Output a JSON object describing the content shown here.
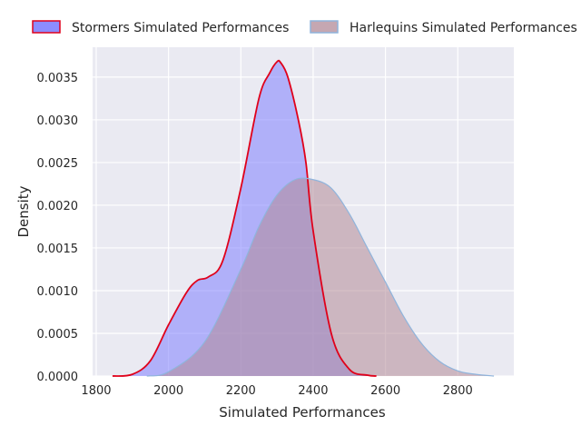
{
  "chart_data": {
    "type": "area",
    "xlabel": "Simulated Performances",
    "ylabel": "Density",
    "xlim": [
      1790,
      2955
    ],
    "ylim": [
      0,
      0.00385
    ],
    "x_ticks": [
      "1800",
      "2000",
      "2200",
      "2400",
      "2600",
      "2800"
    ],
    "y_ticks": [
      "0.0000",
      "0.0005",
      "0.0010",
      "0.0015",
      "0.0020",
      "0.0025",
      "0.0030",
      "0.0035"
    ],
    "grid": true,
    "legend_placement": "top-center",
    "series": [
      {
        "name": "Stormers Simulated Performances",
        "fill_color": "#8080ff",
        "fill_opacity": 0.55,
        "line_color": "#e0001a",
        "points": [
          [
            1845,
            0.0
          ],
          [
            1900,
            2e-05
          ],
          [
            1950,
            0.00018
          ],
          [
            2000,
            0.0006
          ],
          [
            2050,
            0.00098
          ],
          [
            2080,
            0.00112
          ],
          [
            2110,
            0.00116
          ],
          [
            2150,
            0.00135
          ],
          [
            2200,
            0.0022
          ],
          [
            2250,
            0.00325
          ],
          [
            2280,
            0.00355
          ],
          [
            2300,
            0.00368
          ],
          [
            2310,
            0.00367
          ],
          [
            2330,
            0.0035
          ],
          [
            2360,
            0.00298
          ],
          [
            2380,
            0.0025
          ],
          [
            2400,
            0.0017
          ],
          [
            2450,
            0.0005
          ],
          [
            2500,
            8e-05
          ],
          [
            2550,
            1e-05
          ],
          [
            2575,
            0.0
          ]
        ]
      },
      {
        "name": "Harlequins Simulated Performances",
        "fill_color": "#b28a98",
        "fill_opacity": 0.55,
        "line_color": "#8fb4dc",
        "points": [
          [
            1940,
            0.0
          ],
          [
            2000,
            5e-05
          ],
          [
            2100,
            0.0004
          ],
          [
            2200,
            0.00125
          ],
          [
            2250,
            0.00175
          ],
          [
            2300,
            0.00212
          ],
          [
            2350,
            0.0023
          ],
          [
            2400,
            0.0023
          ],
          [
            2450,
            0.0022
          ],
          [
            2500,
            0.0019
          ],
          [
            2550,
            0.0015
          ],
          [
            2600,
            0.0011
          ],
          [
            2650,
            0.0007
          ],
          [
            2700,
            0.00038
          ],
          [
            2750,
            0.00017
          ],
          [
            2800,
            6e-05
          ],
          [
            2850,
            2e-05
          ],
          [
            2900,
            0.0
          ]
        ]
      }
    ]
  }
}
